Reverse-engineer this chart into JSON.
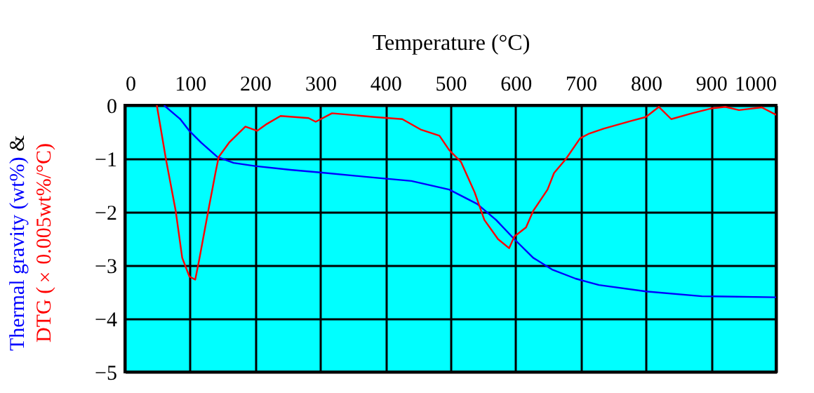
{
  "chart_data": {
    "type": "line",
    "xlabel": "Temperature (°C)",
    "ylabel": "&",
    "xlim": [
      0,
      1000
    ],
    "xticks": [
      0,
      100,
      200,
      300,
      400,
      500,
      600,
      700,
      800,
      900,
      1000
    ],
    "ylim": [
      -5,
      0
    ],
    "yticks": [
      -5,
      -4,
      -3,
      -2,
      -1,
      0
    ],
    "grid": true,
    "legend": false,
    "series": [
      {
        "name": "Thermal gravity (wt%)",
        "color": "#0000ff",
        "x": [
          60,
          85,
          99,
          117,
          142,
          167,
          200,
          254,
          300,
          369,
          440,
          498,
          541,
          570,
          598,
          627,
          656,
          692,
          713,
          728,
          800,
          886,
          1000
        ],
        "values": [
          0,
          -0.26,
          -0.48,
          -0.7,
          -0.97,
          -1.08,
          -1.14,
          -1.21,
          -1.26,
          -1.34,
          -1.42,
          -1.58,
          -1.85,
          -2.15,
          -2.51,
          -2.86,
          -3.08,
          -3.25,
          -3.32,
          -3.37,
          -3.49,
          -3.58,
          -3.6
        ]
      },
      {
        "name": "DTG (×0.005wt%/°C)",
        "color": "#ff0000",
        "x": [
          49,
          63,
          78,
          88,
          99,
          108,
          114,
          128,
          139,
          144,
          160,
          185,
          203,
          218,
          239,
          282,
          293,
          318,
          383,
          426,
          455,
          483,
          498,
          516,
          537,
          552,
          573,
          590,
          598,
          616,
          627,
          649,
          659,
          677,
          699,
          713,
          735,
          778,
          800,
          820,
          839,
          871,
          900,
          922,
          943,
          978,
          1000
        ],
        "values": [
          0,
          -1.01,
          -1.98,
          -2.86,
          -3.21,
          -3.27,
          -2.9,
          -1.98,
          -1.27,
          -0.97,
          -0.7,
          -0.4,
          -0.48,
          -0.35,
          -0.2,
          -0.24,
          -0.31,
          -0.15,
          -0.22,
          -0.26,
          -0.46,
          -0.57,
          -0.84,
          -1.06,
          -1.63,
          -2.15,
          -2.51,
          -2.68,
          -2.46,
          -2.29,
          -1.98,
          -1.58,
          -1.27,
          -1.01,
          -0.62,
          -0.53,
          -0.44,
          -0.29,
          -0.22,
          -0.03,
          -0.26,
          -0.15,
          -0.06,
          -0.03,
          -0.09,
          -0.04,
          -0.18
        ]
      }
    ]
  }
}
